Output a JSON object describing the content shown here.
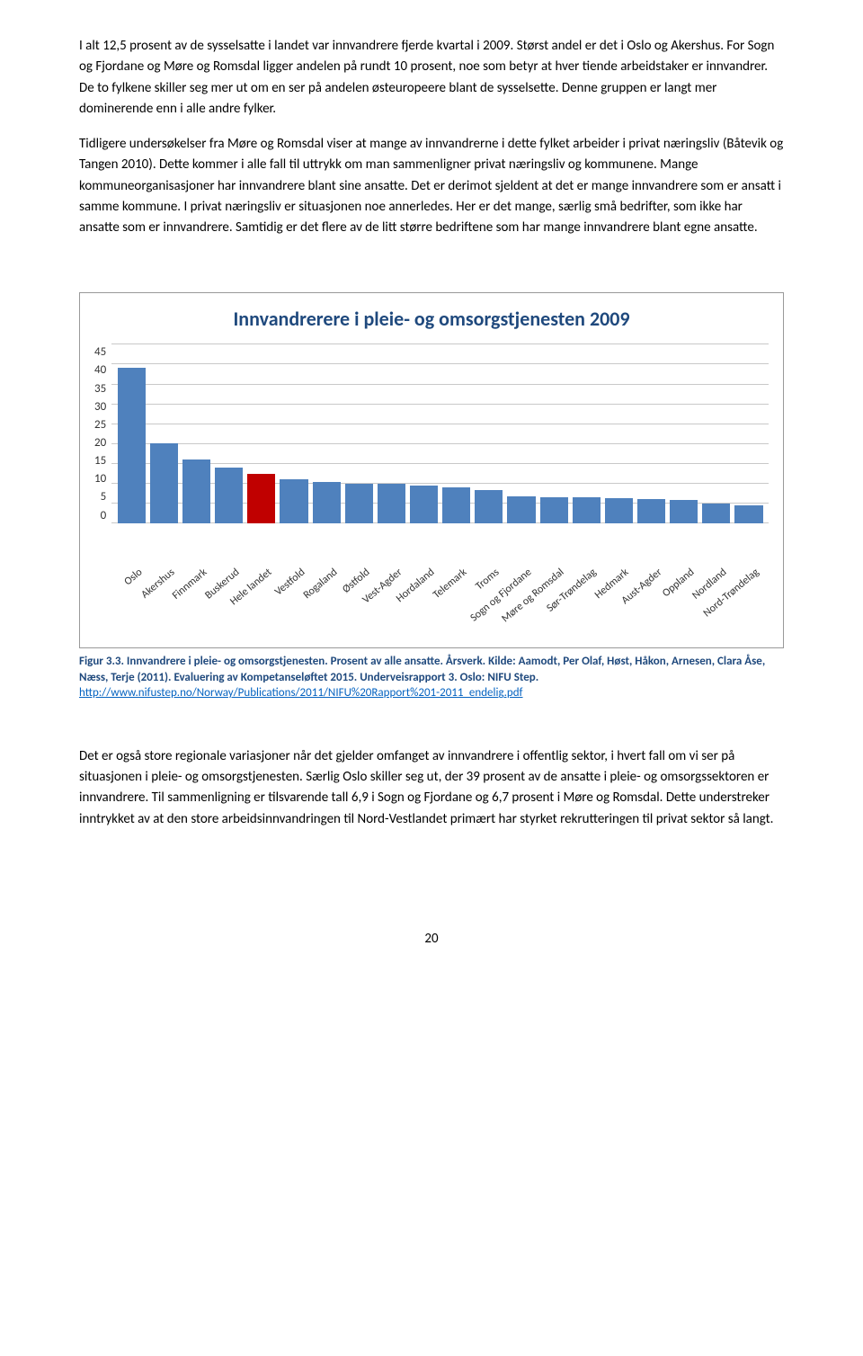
{
  "para1": "I alt 12,5 prosent av de sysselsatte i landet var innvandrere fjerde kvartal i 2009. Størst andel er det i Oslo og Akershus. For Sogn og Fjordane og Møre og Romsdal ligger andelen på rundt 10 prosent, noe som betyr at hver tiende arbeidstaker er innvandrer. De to fylkene skiller seg mer ut om en ser på andelen østeuropeere blant de sysselsette. Denne gruppen er langt mer dominerende enn i alle andre fylker.",
  "para2": "Tidligere undersøkelser fra Møre og Romsdal viser at mange av innvandrerne i dette fylket arbeider i privat næringsliv (Båtevik og Tangen 2010). Dette kommer i alle fall til uttrykk om man sammenligner privat næringsliv og kommunene. Mange kommuneorganisasjoner har innvandrere blant sine ansatte. Det er derimot sjeldent at det er mange innvandrere som er ansatt i samme kommune. I privat næringsliv er situasjonen noe annerledes. Her er det mange, særlig små bedrifter, som ikke har ansatte som er innvandrere.  Samtidig er det flere av de litt større bedriftene som har mange innvandrere blant egne ansatte.",
  "chart": {
    "title": "Innvandrerere i pleie- og omsorgstjenesten 2009",
    "type": "bar",
    "ylim": [
      0,
      45
    ],
    "ytick_step": 5,
    "yticks": [
      "45",
      "40",
      "35",
      "30",
      "25",
      "20",
      "15",
      "10",
      "5",
      "0"
    ],
    "categories": [
      "Oslo",
      "Akershus",
      "Finnmark",
      "Buskerud",
      "Hele landet",
      "Vestfold",
      "Rogaland",
      "Østfold",
      "Vest-Agder",
      "Hordaland",
      "Telemark",
      "Troms",
      "Sogn og Fjordane",
      "Møre og Romsdal",
      "Sør-Trøndelag",
      "Hedmark",
      "Aust-Agder",
      "Oppland",
      "Nordland",
      "Nord-Trøndelag"
    ],
    "values": [
      39,
      20,
      16,
      14,
      12.5,
      11,
      10.5,
      10,
      10,
      9.5,
      9,
      8.5,
      6.9,
      6.7,
      6.5,
      6.3,
      6.2,
      6,
      5,
      4.5
    ],
    "bar_colors": [
      "#4f81bd",
      "#4f81bd",
      "#4f81bd",
      "#4f81bd",
      "#c00000",
      "#4f81bd",
      "#4f81bd",
      "#4f81bd",
      "#4f81bd",
      "#4f81bd",
      "#4f81bd",
      "#4f81bd",
      "#4f81bd",
      "#4f81bd",
      "#4f81bd",
      "#4f81bd",
      "#4f81bd",
      "#4f81bd",
      "#4f81bd",
      "#4f81bd"
    ],
    "grid_color": "#c9c9c9",
    "background_color": "#ffffff"
  },
  "caption": {
    "pre": "Figur 3.3. Innvandrere i pleie- og omsorgstjenesten. Prosent av alle ansatte. Årsverk. Kilde: Aamodt, Per Olaf, Høst, Håkon, Arnesen, Clara Åse, Næss, Terje (2011). Evaluering av Kompetanseløftet 2015. Underveisrapport 3. Oslo: NIFU Step.  ",
    "link": "http://www.nifustep.no/Norway/Publications/2011/NIFU%20Rapport%201-2011_endelig.pdf"
  },
  "para3": "Det er også store regionale variasjoner når det gjelder omfanget av innvandrere i offentlig sektor, i hvert fall om vi ser på situasjonen i pleie- og omsorgstjenesten. Særlig Oslo skiller seg ut, der 39 prosent av de ansatte i pleie- og omsorgssektoren er innvandrere. Til sammenligning er tilsvarende tall 6,9 i Sogn og Fjordane og 6,7 prosent i Møre og Romsdal. Dette understreker inntrykket av at den store arbeidsinnvandringen til Nord-Vestlandet primært har styrket rekrutteringen til privat sektor så langt.",
  "pagenum": "20"
}
